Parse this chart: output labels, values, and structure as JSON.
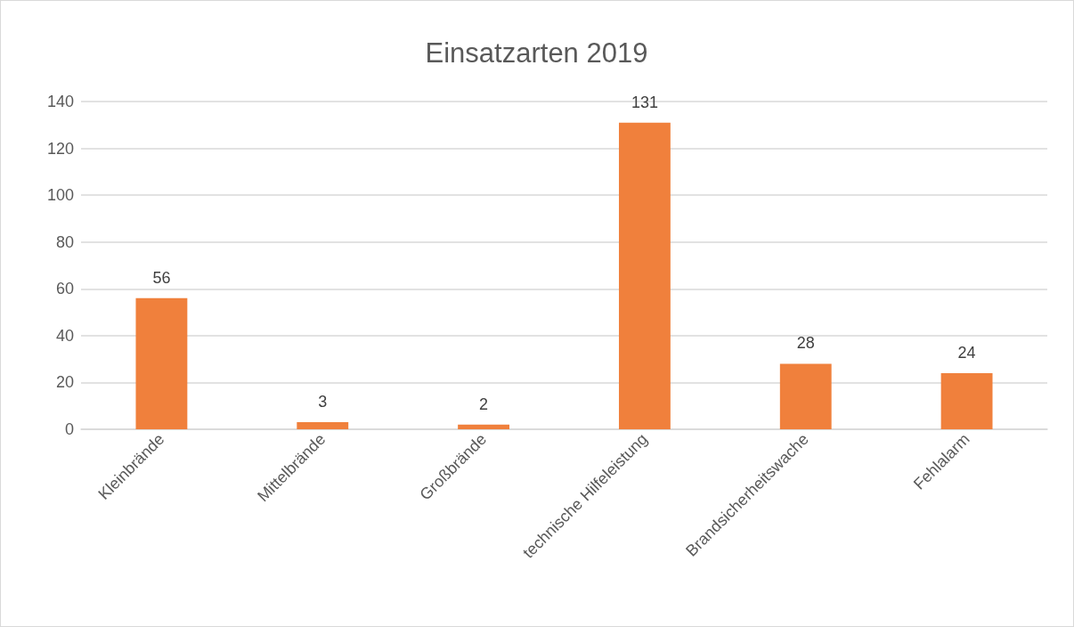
{
  "chart_data": {
    "type": "bar",
    "title": "Einsatzarten 2019",
    "categories": [
      "Kleinbrände",
      "Mittelbrände",
      "Großbrände",
      "technische Hilfeleistung",
      "Brandsicherheitswache",
      "Fehlalarm"
    ],
    "values": [
      56,
      3,
      2,
      131,
      28,
      24
    ],
    "color": "#f0803c",
    "ylim": [
      0,
      140
    ],
    "yticks": [
      0,
      20,
      40,
      60,
      80,
      100,
      120,
      140
    ],
    "grid": "y",
    "data_labels": true
  }
}
